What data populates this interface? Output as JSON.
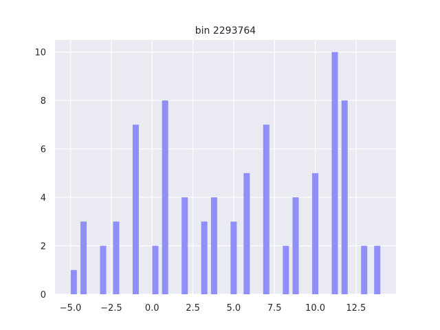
{
  "chart_data": {
    "type": "bar",
    "title": "bin 2293764",
    "xlabel": "",
    "ylabel": "",
    "xlim": [
      -5.95,
      14.95
    ],
    "ylim": [
      0,
      10.5
    ],
    "x_ticks": [
      -5.0,
      -2.5,
      0.0,
      2.5,
      5.0,
      7.5,
      10.0,
      12.5
    ],
    "x_tick_labels": [
      "−5.0",
      "−2.5",
      "0.0",
      "2.5",
      "5.0",
      "7.5",
      "10.0",
      "12.5"
    ],
    "y_ticks": [
      0,
      2,
      4,
      6,
      8,
      10
    ],
    "y_tick_labels": [
      "0",
      "2",
      "4",
      "6",
      "8",
      "10"
    ],
    "grid": true,
    "bar_width": 0.38,
    "color": "#8f8ff7",
    "background": "#eaeaf2",
    "x": [
      -4.8,
      -4.2,
      -3.0,
      -2.2,
      -1.0,
      0.2,
      0.8,
      2.0,
      3.2,
      3.8,
      5.0,
      5.8,
      7.0,
      8.2,
      8.8,
      10.0,
      11.2,
      11.8,
      13.0,
      13.8
    ],
    "values": [
      1,
      3,
      2,
      3,
      7,
      2,
      8,
      4,
      3,
      4,
      3,
      5,
      7,
      2,
      4,
      5,
      10,
      8,
      2,
      2
    ]
  }
}
